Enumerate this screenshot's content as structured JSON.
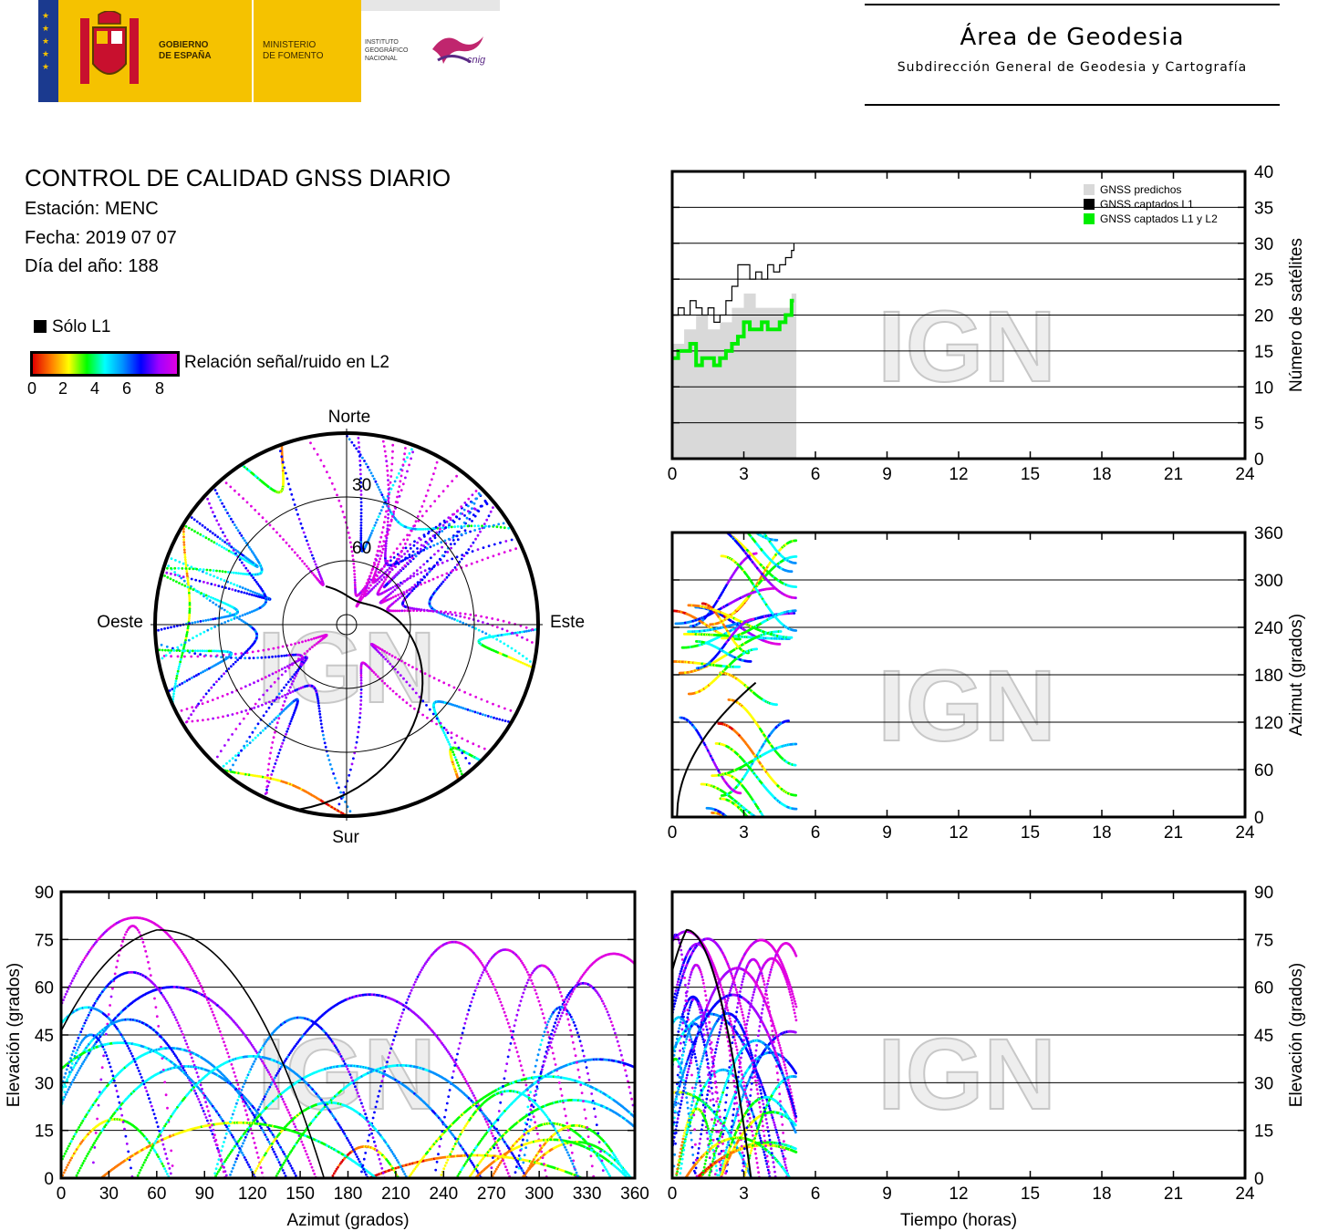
{
  "header": {
    "gobierno": "GOBIERNO\nDE ESPAÑA",
    "ministerio": "MINISTERIO\nDE FOMENTO",
    "instituto": "INSTITUTO\nGEOGRÁFICO\nNACIONAL",
    "cnig": "cnig",
    "area_title": "Área de Geodesia",
    "area_subtitle": "Subdirección General de Geodesia y Cartografía"
  },
  "report": {
    "title": "CONTROL DE CALIDAD GNSS DIARIO",
    "station": "Estación: MENC",
    "date": "Fecha: 2019 07 07",
    "doy": "Día del año: 188"
  },
  "legend": {
    "l1_only": "Sólo L1",
    "snr_label": "Relación señal/ruido en L2",
    "snr_ticks": [
      "0",
      "2",
      "4",
      "6",
      "8"
    ]
  },
  "watermark": "IGN",
  "colors": {
    "predicted": "#d9d9d9",
    "l1": "#000000",
    "l1l2": "#00ee00",
    "snr_scale": [
      "#e00000",
      "#ff7a00",
      "#ffff00",
      "#00ff00",
      "#00ffff",
      "#0090ff",
      "#0000ff",
      "#a000ff",
      "#e000e0"
    ]
  },
  "chart_data": [
    {
      "type": "polar",
      "id": "skyplot",
      "directions": {
        "north": "Norte",
        "south": "Sur",
        "east": "Este",
        "west": "Oeste"
      },
      "ring_labels": [
        "30",
        "60"
      ],
      "rings_elevation_deg": [
        30,
        60,
        85
      ],
      "tracks_note": "satellite tracks coloured by L2 SNR (0-8)"
    },
    {
      "type": "area",
      "id": "satellite-count",
      "ylabel": "Número de satélites",
      "ylim": [
        0,
        40
      ],
      "yticks": [
        "0",
        "5",
        "10",
        "15",
        "20",
        "25",
        "30",
        "35",
        "40"
      ],
      "xlim": [
        0,
        24
      ],
      "xticks": [
        "0",
        "3",
        "6",
        "9",
        "12",
        "15",
        "18",
        "21",
        "24"
      ],
      "legend_position": "top-right",
      "series": [
        {
          "name": "GNSS predichos",
          "x": [
            0,
            0.5,
            1,
            1.5,
            2,
            2.5,
            3,
            3.5,
            4,
            4.5,
            5,
            5.2
          ],
          "values": [
            16,
            18,
            20,
            18,
            19,
            21,
            23,
            21,
            21,
            21,
            23,
            23
          ]
        },
        {
          "name": "GNSS captados L1",
          "x": [
            0,
            0.25,
            0.5,
            0.75,
            1,
            1.25,
            1.5,
            1.75,
            2,
            2.25,
            2.5,
            2.75,
            3,
            3.25,
            3.5,
            3.75,
            4,
            4.25,
            4.5,
            4.75,
            5,
            5.1
          ],
          "values": [
            20,
            21,
            20,
            22,
            21,
            20,
            21,
            19,
            20,
            22,
            24,
            27,
            27,
            25,
            26,
            25,
            27,
            26,
            27,
            28,
            29,
            30
          ]
        },
        {
          "name": "GNSS captados L1 y L2",
          "x": [
            0,
            0.25,
            0.5,
            0.75,
            1,
            1.25,
            1.5,
            1.75,
            2,
            2.25,
            2.5,
            2.75,
            3,
            3.25,
            3.5,
            3.75,
            4,
            4.25,
            4.5,
            4.75,
            5,
            5.1
          ],
          "values": [
            14,
            15,
            15,
            16,
            13,
            14,
            14,
            13,
            14,
            15,
            16,
            17,
            19,
            18,
            18,
            19,
            18,
            18,
            19,
            20,
            22,
            22
          ]
        }
      ]
    },
    {
      "type": "scatter",
      "id": "azimuth-vs-time",
      "ylabel": "Azimut (grados)",
      "ylim": [
        0,
        360
      ],
      "yticks": [
        "0",
        "60",
        "120",
        "180",
        "240",
        "300",
        "360"
      ],
      "xlim": [
        0,
        24
      ],
      "xticks": [
        "0",
        "3",
        "6",
        "9",
        "12",
        "15",
        "18",
        "21",
        "24"
      ]
    },
    {
      "type": "scatter",
      "id": "elevation-vs-azimuth",
      "xlabel": "Azimut (grados)",
      "ylabel": "Elevación (grados)",
      "xlim": [
        0,
        360
      ],
      "ylim": [
        0,
        90
      ],
      "xticks": [
        "0",
        "30",
        "60",
        "90",
        "120",
        "150",
        "180",
        "210",
        "240",
        "270",
        "300",
        "330",
        "360"
      ],
      "yticks": [
        "0",
        "15",
        "30",
        "45",
        "60",
        "75",
        "90"
      ]
    },
    {
      "type": "scatter",
      "id": "elevation-vs-time",
      "xlabel": "Tiempo (horas)",
      "ylabel": "Elevación (grados)",
      "xlim": [
        0,
        24
      ],
      "ylim": [
        0,
        90
      ],
      "xticks": [
        "0",
        "3",
        "6",
        "9",
        "12",
        "15",
        "18",
        "21",
        "24"
      ],
      "yticks": [
        "0",
        "15",
        "30",
        "45",
        "60",
        "75",
        "90"
      ]
    }
  ]
}
